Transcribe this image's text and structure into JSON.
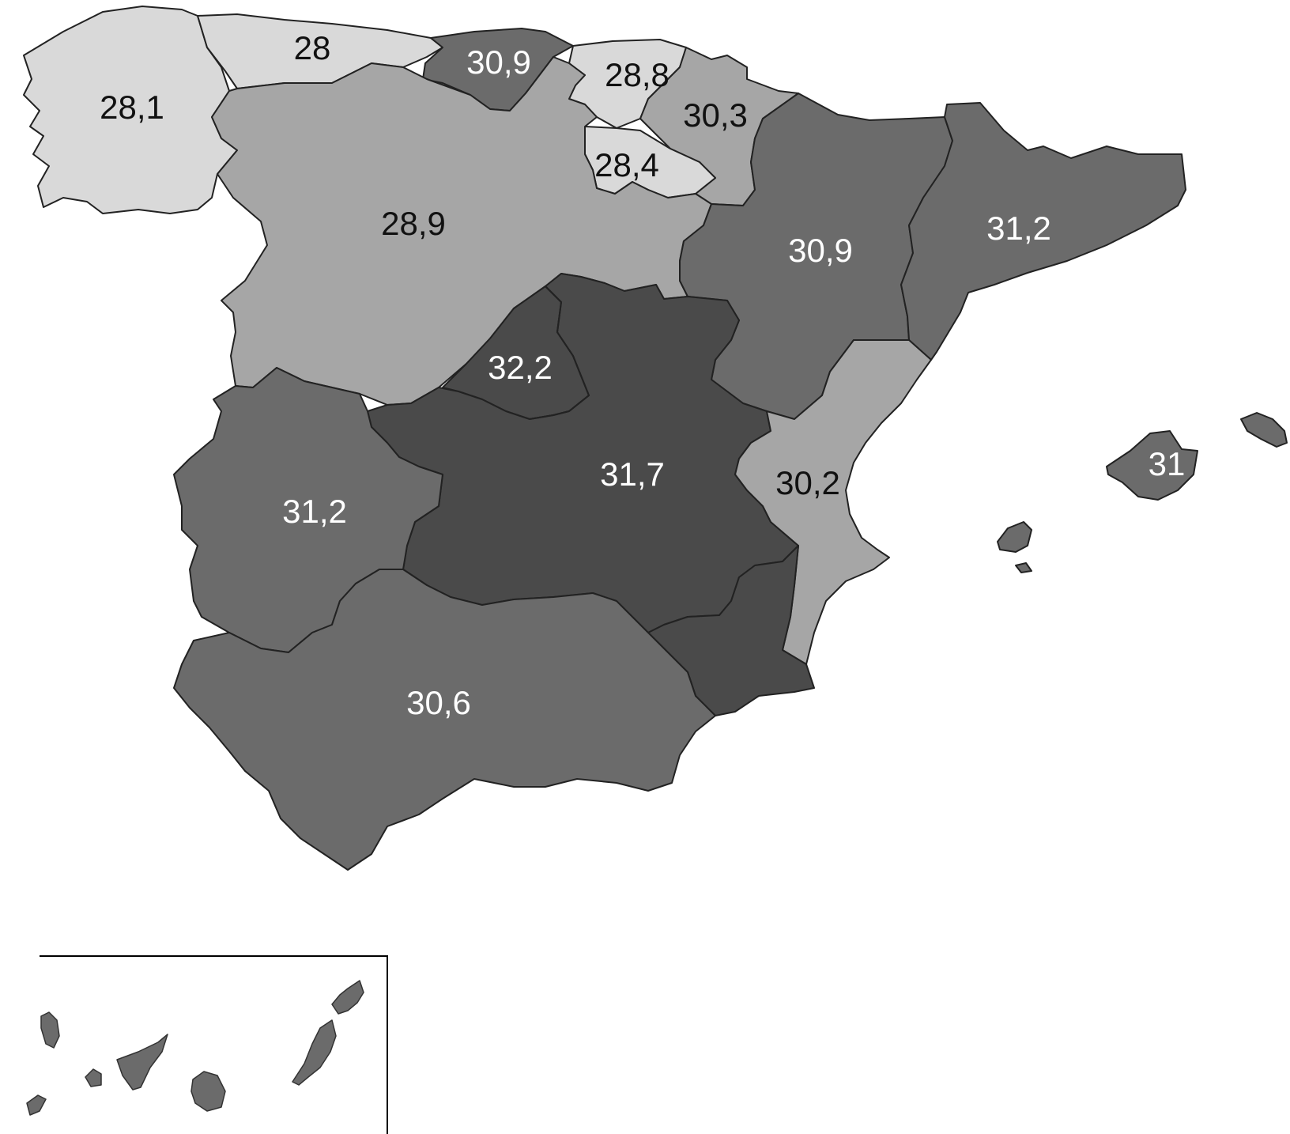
{
  "colors": {
    "very_light": "#d9d9d9",
    "light": "#a6a6a6",
    "mid_light": "#969696",
    "medium": "#6b6b6b",
    "dark": "#5a5a5a",
    "darkest": "#4a4a4a",
    "text_dark": "#111111",
    "text_light": "#ffffff"
  },
  "regions": [
    {
      "id": "galicia",
      "value": "28,1",
      "shade": "very_light",
      "text": "text_dark"
    },
    {
      "id": "asturias",
      "value": "28",
      "shade": "very_light",
      "text": "text_dark"
    },
    {
      "id": "cantabria",
      "value": "30,9",
      "shade": "medium",
      "text": "text_light"
    },
    {
      "id": "pais-vasco",
      "value": "28,8",
      "shade": "very_light",
      "text": "text_dark"
    },
    {
      "id": "navarra",
      "value": "30,3",
      "shade": "light",
      "text": "text_dark"
    },
    {
      "id": "la-rioja",
      "value": "28,4",
      "shade": "very_light",
      "text": "text_dark"
    },
    {
      "id": "castilla-leon",
      "value": "28,9",
      "shade": "light",
      "text": "text_dark"
    },
    {
      "id": "aragon",
      "value": "30,9",
      "shade": "medium",
      "text": "text_light"
    },
    {
      "id": "cataluna",
      "value": "31,2",
      "shade": "medium",
      "text": "text_light"
    },
    {
      "id": "madrid",
      "value": "32,2",
      "shade": "darkest",
      "text": "text_light"
    },
    {
      "id": "castilla-la-mancha",
      "value": "31,7",
      "shade": "darkest",
      "text": "text_light"
    },
    {
      "id": "valencia",
      "value": "30,2",
      "shade": "light",
      "text": "text_dark"
    },
    {
      "id": "extremadura",
      "value": "31,2",
      "shade": "medium",
      "text": "text_light"
    },
    {
      "id": "andalucia",
      "value": "30,6",
      "shade": "medium",
      "text": "text_light"
    },
    {
      "id": "murcia",
      "value": "",
      "shade": "darkest",
      "text": "text_light"
    },
    {
      "id": "baleares",
      "value": "31",
      "shade": "medium",
      "text": "text_light"
    },
    {
      "id": "canarias",
      "value": "",
      "shade": "medium",
      "text": "text_light"
    }
  ]
}
